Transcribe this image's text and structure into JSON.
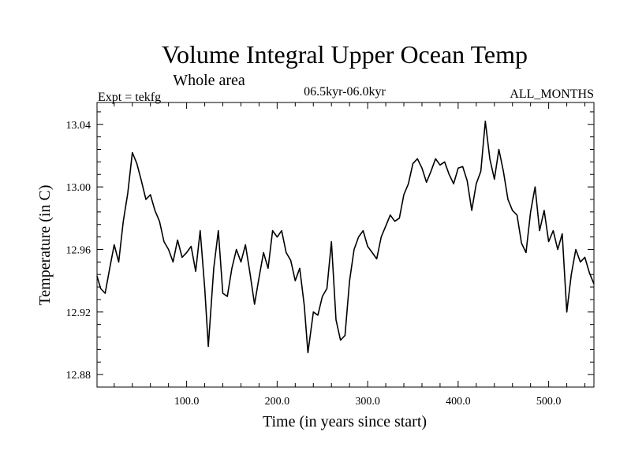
{
  "chart_data": {
    "type": "line",
    "title": "Volume Integral Upper Ocean Temp",
    "subtitle": "Whole area",
    "experiment": "Expt = tekfg",
    "period": "06.5kyr-06.0kyr",
    "months": "ALL_MONTHS",
    "xlabel": "Time (in years since start)",
    "ylabel": "Temperature (in C)",
    "xlim": [
      1,
      550
    ],
    "ylim": [
      12.872,
      13.054
    ],
    "x_ticks": [
      100,
      200,
      300,
      400,
      500
    ],
    "x_tick_labels": [
      "100.0",
      "200.0",
      "300.0",
      "400.0",
      "500.0"
    ],
    "y_ticks": [
      12.88,
      12.92,
      12.96,
      13.0,
      13.04
    ],
    "y_tick_labels": [
      "12.88",
      "12.92",
      "12.96",
      "13.00",
      "13.04"
    ],
    "grid": false,
    "series": [
      {
        "name": "Temperature",
        "x": [
          1,
          5,
          10,
          15,
          20,
          25,
          30,
          35,
          40,
          45,
          50,
          55,
          60,
          65,
          70,
          75,
          80,
          85,
          90,
          95,
          100,
          105,
          110,
          115,
          120,
          124,
          130,
          135,
          140,
          145,
          150,
          155,
          160,
          165,
          170,
          175,
          180,
          185,
          190,
          195,
          200,
          205,
          210,
          215,
          220,
          225,
          230,
          234,
          240,
          245,
          250,
          255,
          260,
          265,
          270,
          275,
          280,
          285,
          290,
          295,
          300,
          305,
          310,
          315,
          320,
          325,
          330,
          335,
          340,
          345,
          350,
          355,
          360,
          365,
          370,
          375,
          380,
          385,
          390,
          395,
          400,
          405,
          410,
          415,
          420,
          425,
          430,
          435,
          440,
          445,
          450,
          455,
          460,
          465,
          470,
          475,
          480,
          485,
          490,
          495,
          500,
          505,
          510,
          515,
          520,
          525,
          530,
          535,
          540,
          545,
          550
        ],
        "values": [
          12.943,
          12.935,
          12.932,
          12.948,
          12.963,
          12.952,
          12.978,
          12.996,
          13.022,
          13.015,
          13.004,
          12.992,
          12.995,
          12.985,
          12.978,
          12.965,
          12.96,
          12.952,
          12.966,
          12.955,
          12.958,
          12.962,
          12.946,
          12.972,
          12.935,
          12.898,
          12.948,
          12.972,
          12.932,
          12.93,
          12.948,
          12.96,
          12.952,
          12.963,
          12.945,
          12.925,
          12.942,
          12.958,
          12.948,
          12.972,
          12.968,
          12.972,
          12.958,
          12.953,
          12.94,
          12.948,
          12.924,
          12.894,
          12.92,
          12.918,
          12.93,
          12.935,
          12.965,
          12.915,
          12.902,
          12.905,
          12.94,
          12.96,
          12.968,
          12.972,
          12.962,
          12.958,
          12.954,
          12.968,
          12.975,
          12.982,
          12.978,
          12.98,
          12.995,
          13.002,
          13.015,
          13.018,
          13.012,
          13.003,
          13.01,
          13.018,
          13.014,
          13.016,
          13.008,
          13.002,
          13.012,
          13.013,
          13.004,
          12.985,
          13.002,
          13.01,
          13.042,
          13.018,
          13.005,
          13.024,
          13.01,
          12.992,
          12.985,
          12.982,
          12.964,
          12.958,
          12.984,
          13.0,
          12.972,
          12.985,
          12.965,
          12.972,
          12.96,
          12.97,
          12.92,
          12.944,
          12.96,
          12.952,
          12.955,
          12.945,
          12.938
        ]
      }
    ]
  }
}
